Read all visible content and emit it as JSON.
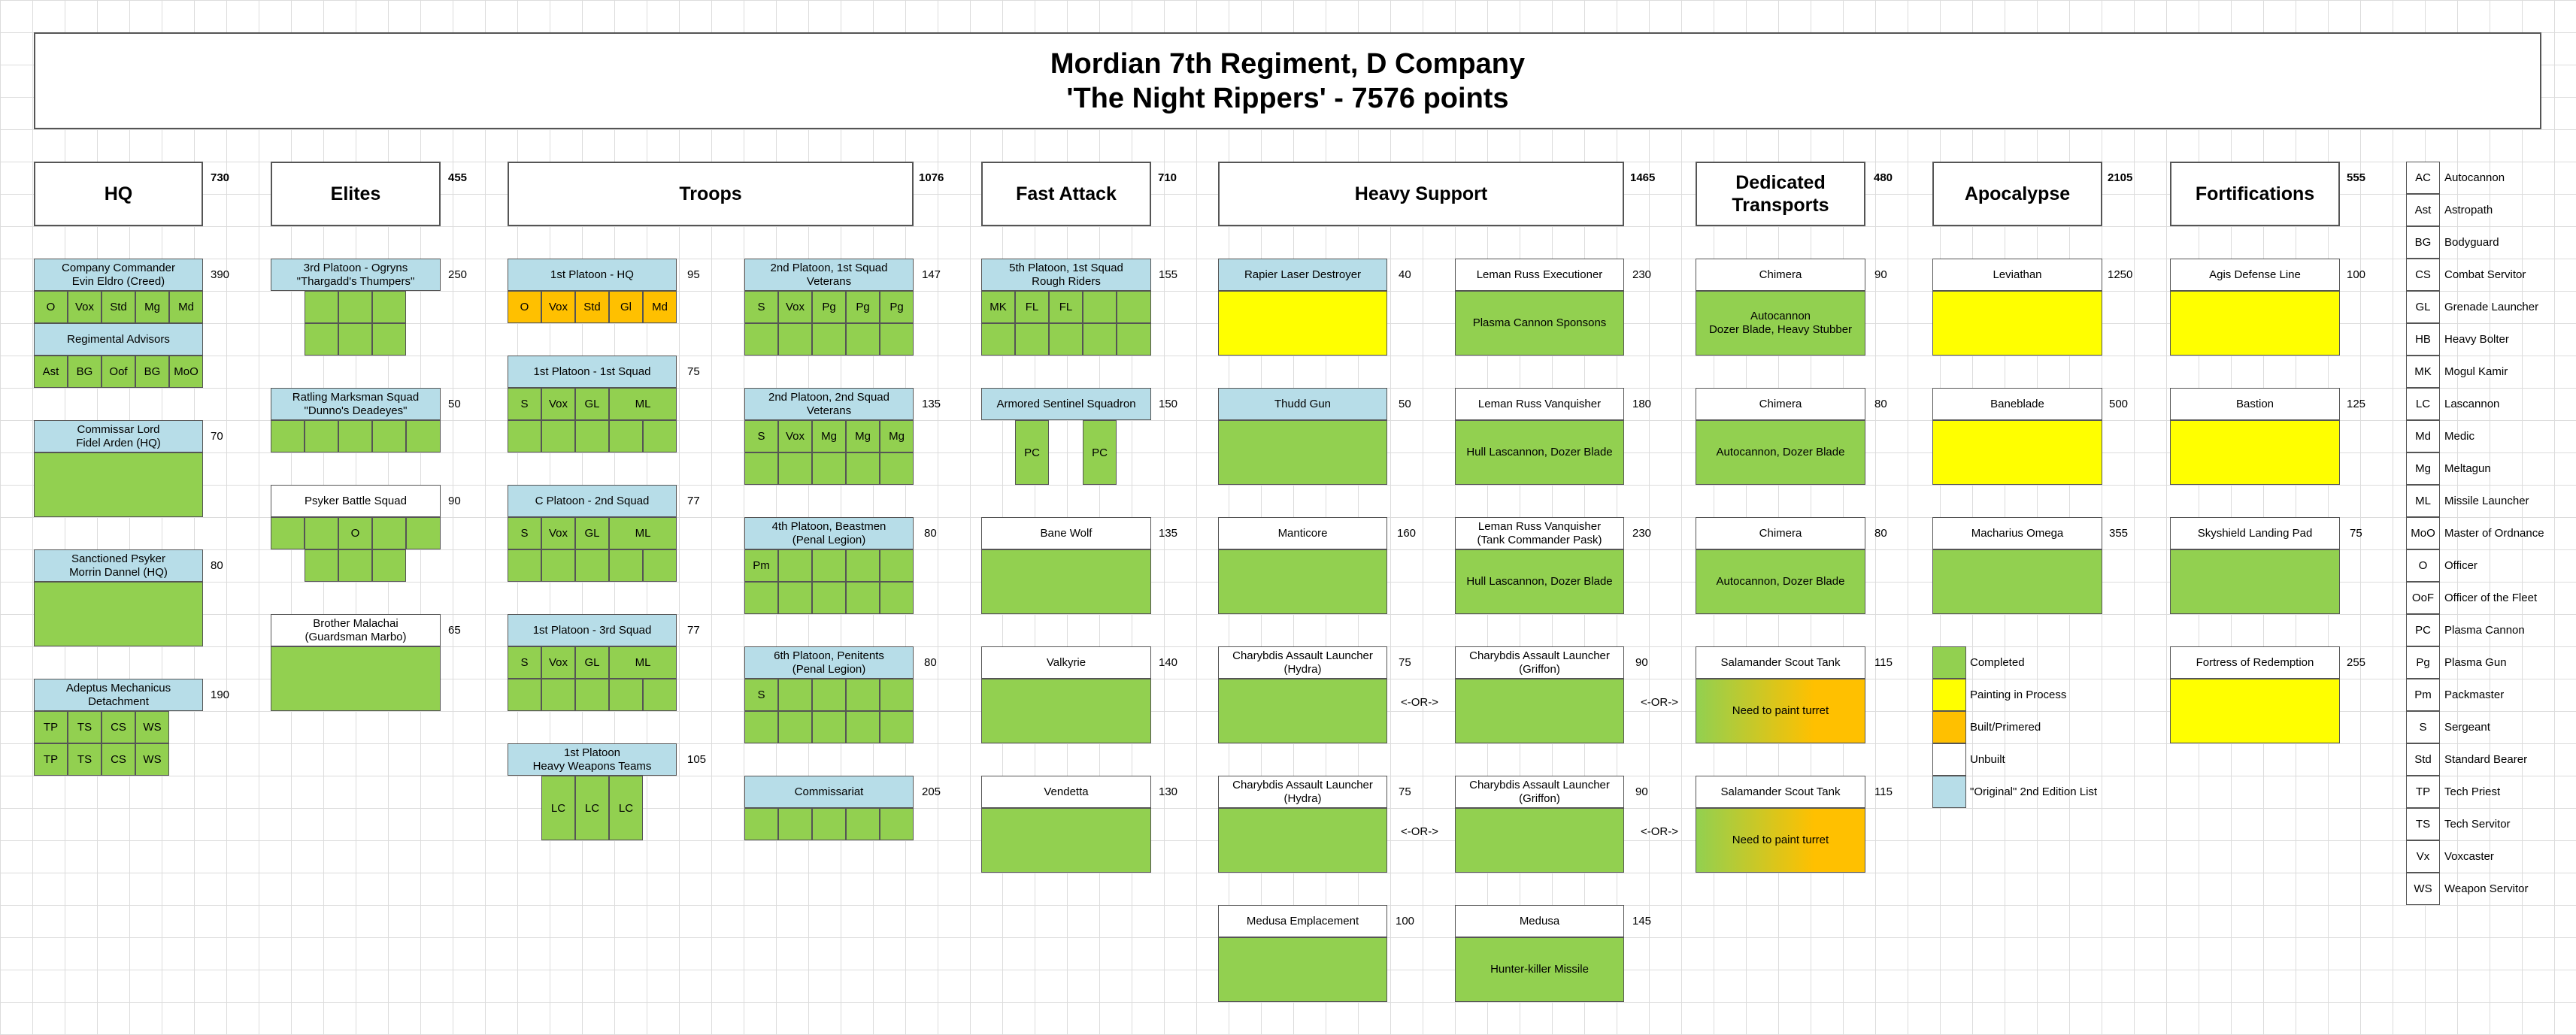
{
  "title": {
    "line1": "Mordian 7th Regiment, D Company",
    "line2": "'The Night Rippers' - 7576 points"
  },
  "categories": {
    "hq": {
      "label": "HQ",
      "points": "730"
    },
    "elites": {
      "label": "Elites",
      "points": "455"
    },
    "troops": {
      "label": "Troops",
      "points": "1076"
    },
    "fast": {
      "label": "Fast Attack",
      "points": "710"
    },
    "heavy": {
      "label": "Heavy Support",
      "points": "1465"
    },
    "transports": {
      "label": "Dedicated Transports",
      "points": "480"
    },
    "apocalypse": {
      "label": "Apocalypse",
      "points": "2105"
    },
    "fortifications": {
      "label": "Fortifications",
      "points": "555"
    }
  },
  "hq": {
    "commander": {
      "name1": "Company Commander",
      "name2": "Evin Eldro (Creed)",
      "points": "390",
      "cells": [
        "O",
        "Vox",
        "Std",
        "Mg",
        "Md"
      ]
    },
    "advisors": {
      "name": "Regimental Advisors",
      "cells": [
        "Ast",
        "BG",
        "Oof",
        "BG",
        "MoO"
      ]
    },
    "lord": {
      "name1": "Commissar Lord",
      "name2": "Fidel Arden (HQ)",
      "points": "70"
    },
    "psyker": {
      "name1": "Sanctioned Psyker",
      "name2": "Morrin Dannel (HQ)",
      "points": "80"
    },
    "mechanicus": {
      "name1": "Adeptus Mechanicus",
      "name2": "Detachment",
      "points": "190",
      "row1": [
        "TP",
        "TS",
        "CS",
        "WS"
      ],
      "row2": [
        "TP",
        "TS",
        "CS",
        "WS"
      ]
    }
  },
  "elites": {
    "ogryns": {
      "name1": "3rd Platoon - Ogryns",
      "name2": "\"Thargadd's Thumpers\"",
      "points": "250"
    },
    "ratling": {
      "name1": "Ratling Marksman Squad",
      "name2": "\"Dunno's Deadeyes\"",
      "points": "50"
    },
    "psykers": {
      "name": "Psyker Battle Squad",
      "points": "90",
      "officer": "O"
    },
    "malachai": {
      "name1": "Brother Malachai",
      "name2": "(Guardsman Marbo)",
      "points": "65"
    }
  },
  "troops": {
    "hq1": {
      "name": "1st Platoon - HQ",
      "points": "95",
      "cells": [
        "O",
        "Vox",
        "Std",
        "Gl",
        "Md"
      ]
    },
    "sq1": {
      "name": "1st Platoon - 1st Squad",
      "points": "75",
      "cells": [
        "S",
        "Vox",
        "GL",
        "ML"
      ]
    },
    "sq2": {
      "name": "C Platoon - 2nd Squad",
      "points": "77",
      "cells": [
        "S",
        "Vox",
        "GL",
        "ML"
      ]
    },
    "sq3": {
      "name": "1st Platoon - 3rd Squad",
      "points": "77",
      "cells": [
        "S",
        "Vox",
        "GL",
        "ML"
      ]
    },
    "hwt": {
      "name1": "1st Platoon",
      "name2": "Heavy Weapons Teams",
      "points": "105",
      "cells": [
        "LC",
        "LC",
        "LC"
      ]
    },
    "vet1": {
      "name1": "2nd Platoon, 1st Squad",
      "name2": "Veterans",
      "points": "147",
      "cells": [
        "S",
        "Vox",
        "Pg",
        "Pg",
        "Pg"
      ]
    },
    "vet2": {
      "name1": "2nd Platoon, 2nd Squad",
      "name2": "Veterans",
      "points": "135",
      "cells": [
        "S",
        "Vox",
        "Mg",
        "Mg",
        "Mg"
      ]
    },
    "beast": {
      "name1": "4th Platoon, Beastmen",
      "name2": "(Penal Legion)",
      "points": "80",
      "cells": [
        "Pm"
      ]
    },
    "penit": {
      "name1": "6th Platoon, Penitents",
      "name2": "(Penal Legion)",
      "points": "80",
      "cells": [
        "S"
      ]
    },
    "commissariat": {
      "name": "Commissariat",
      "points": "205"
    }
  },
  "fast": {
    "riders": {
      "name1": "5th Platoon, 1st Squad",
      "name2": "Rough Riders",
      "points": "155",
      "cells": [
        "MK",
        "FL",
        "FL"
      ]
    },
    "sentinel": {
      "name": "Armored Sentinel Squadron",
      "points": "150",
      "cells": [
        "PC",
        "PC"
      ]
    },
    "banewolf": {
      "name": "Bane Wolf",
      "points": "135"
    },
    "valkyrie": {
      "name": "Valkyrie",
      "points": "140"
    },
    "vendetta": {
      "name": "Vendetta",
      "points": "130"
    }
  },
  "heavy": {
    "rapier": {
      "name": "Rapier Laser Destroyer",
      "points": "40"
    },
    "thudd": {
      "name": "Thudd Gun",
      "points": "50"
    },
    "manticore": {
      "name": "Manticore",
      "points": "160"
    },
    "hydra1": {
      "name1": "Charybdis Assault Launcher",
      "name2": "(Hydra)",
      "points": "75"
    },
    "hydra2": {
      "name1": "Charybdis Assault Launcher",
      "name2": "(Hydra)",
      "points": "75"
    },
    "medusaemp": {
      "name": "Medusa Emplacement",
      "points": "100"
    },
    "executioner": {
      "name": "Leman Russ Executioner",
      "points": "230",
      "body": "Plasma Cannon Sponsons"
    },
    "vanq": {
      "name": "Leman Russ Vanquisher",
      "points": "180",
      "body": "Hull Lascannon, Dozer Blade"
    },
    "vanqtc": {
      "name1": "Leman Russ Vanquisher",
      "name2": "(Tank Commander Pask)",
      "points": "230",
      "body": "Hull Lascannon, Dozer Blade"
    },
    "griffon1": {
      "name1": "Charybdis Assault Launcher",
      "name2": "(Griffon)",
      "points": "90"
    },
    "griffon2": {
      "name1": "Charybdis Assault Launcher",
      "name2": "(Griffon)",
      "points": "90"
    },
    "medusa": {
      "name": "Medusa",
      "points": "145",
      "body": "Hunter-killer Missile"
    },
    "or": "<-OR->"
  },
  "transports": {
    "chimera1": {
      "name": "Chimera",
      "points": "90",
      "body1": "Autocannon",
      "body2": "Dozer Blade, Heavy Stubber"
    },
    "chimera2": {
      "name": "Chimera",
      "points": "80",
      "body": "Autocannon, Dozer Blade"
    },
    "chimera3": {
      "name": "Chimera",
      "points": "80",
      "body": "Autocannon, Dozer Blade"
    },
    "scout1": {
      "name": "Salamander Scout Tank",
      "points": "115",
      "body": "Need to paint turret"
    },
    "scout2": {
      "name": "Salamander Scout Tank",
      "points": "115",
      "body": "Need to paint turret"
    }
  },
  "apocalypse": {
    "leviathan": {
      "name": "Leviathan",
      "points": "1250"
    },
    "baneblade": {
      "name": "Baneblade",
      "points": "500"
    },
    "macharius": {
      "name": "Macharius Omega",
      "points": "355"
    }
  },
  "fortifications": {
    "agis": {
      "name": "Agis Defense Line",
      "points": "100"
    },
    "bastion": {
      "name": "Bastion",
      "points": "125"
    },
    "skyshield": {
      "name": "Skyshield Landing Pad",
      "points": "75"
    },
    "redemption": {
      "name": "Fortress of Redemption",
      "points": "255"
    }
  },
  "legend": [
    {
      "label": "Completed",
      "color": "#92d050"
    },
    {
      "label": "Painting in Process",
      "color": "#ffff00"
    },
    {
      "label": "Built/Primered",
      "color": "#ffc000"
    },
    {
      "label": "Unbuilt",
      "color": "#ffffff"
    },
    {
      "label": "\"Original\" 2nd Edition List",
      "color": "#b7dde8"
    }
  ],
  "abbreviations": [
    {
      "abbr": "AC",
      "full": "Autocannon"
    },
    {
      "abbr": "Ast",
      "full": "Astropath"
    },
    {
      "abbr": "BG",
      "full": "Bodyguard"
    },
    {
      "abbr": "CS",
      "full": "Combat Servitor"
    },
    {
      "abbr": "GL",
      "full": "Grenade Launcher"
    },
    {
      "abbr": "HB",
      "full": "Heavy Bolter"
    },
    {
      "abbr": "MK",
      "full": "Mogul Kamir"
    },
    {
      "abbr": "LC",
      "full": "Lascannon"
    },
    {
      "abbr": "Md",
      "full": "Medic"
    },
    {
      "abbr": "Mg",
      "full": "Meltagun"
    },
    {
      "abbr": "ML",
      "full": "Missile Launcher"
    },
    {
      "abbr": "MoO",
      "full": "Master of Ordnance"
    },
    {
      "abbr": "O",
      "full": "Officer"
    },
    {
      "abbr": "OoF",
      "full": "Officer of the Fleet"
    },
    {
      "abbr": "PC",
      "full": "Plasma Cannon"
    },
    {
      "abbr": "Pg",
      "full": "Plasma Gun"
    },
    {
      "abbr": "Pm",
      "full": "Packmaster"
    },
    {
      "abbr": "S",
      "full": "Sergeant"
    },
    {
      "abbr": "Std",
      "full": "Standard Bearer"
    },
    {
      "abbr": "TP",
      "full": "Tech Priest"
    },
    {
      "abbr": "TS",
      "full": "Tech Servitor"
    },
    {
      "abbr": "Vx",
      "full": "Voxcaster"
    },
    {
      "abbr": "WS",
      "full": "Weapon Servitor"
    }
  ],
  "colors": {
    "completed": "#92d050",
    "painting": "#ffff00",
    "built": "#ffc000",
    "unbuilt": "#ffffff",
    "original": "#b7dde8"
  }
}
